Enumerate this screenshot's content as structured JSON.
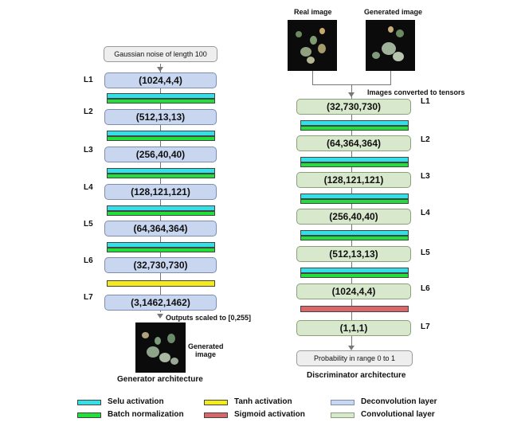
{
  "generator": {
    "input_label": "Gaussian noise of length 100",
    "layers": [
      {
        "id": "L1",
        "shape": "(1024,4,4)"
      },
      {
        "id": "L2",
        "shape": "(512,13,13)"
      },
      {
        "id": "L3",
        "shape": "(256,40,40)"
      },
      {
        "id": "L4",
        "shape": "(128,121,121)"
      },
      {
        "id": "L5",
        "shape": "(64,364,364)"
      },
      {
        "id": "L6",
        "shape": "(32,730,730)"
      },
      {
        "id": "L7",
        "shape": "(3,1462,1462)"
      }
    ],
    "output_note": "Outputs  scaled to [0,255]",
    "output_image_caption": "Generated image",
    "caption": "Generator architecture"
  },
  "discriminator": {
    "real_image_label": "Real image",
    "generated_image_label": "Generated image",
    "tensor_note": "Images converted to tensors",
    "layers": [
      {
        "id": "L1",
        "shape": "(32,730,730)"
      },
      {
        "id": "L2",
        "shape": "(64,364,364)"
      },
      {
        "id": "L3",
        "shape": "(128,121,121)"
      },
      {
        "id": "L4",
        "shape": "(256,40,40)"
      },
      {
        "id": "L5",
        "shape": "(512,13,13)"
      },
      {
        "id": "L6",
        "shape": "(1024,4,4)"
      },
      {
        "id": "L7",
        "shape": "(1,1,1)"
      }
    ],
    "output_label": "Probability in range  0 to 1",
    "caption": "Discriminator architecture"
  },
  "legend": {
    "selu": "Selu activation",
    "batch_norm": "Batch normalization",
    "tanh": "Tanh activation",
    "sigmoid": "Sigmoid activation",
    "deconv": "Deconvolution layer",
    "conv": "Convolutional layer"
  },
  "colors": {
    "selu": "#33e0e8",
    "batch_norm": "#22e03a",
    "tanh": "#f4ec1a",
    "sigmoid": "#d9676a",
    "deconv": "#c8d6f0",
    "conv": "#d8e8cc"
  }
}
